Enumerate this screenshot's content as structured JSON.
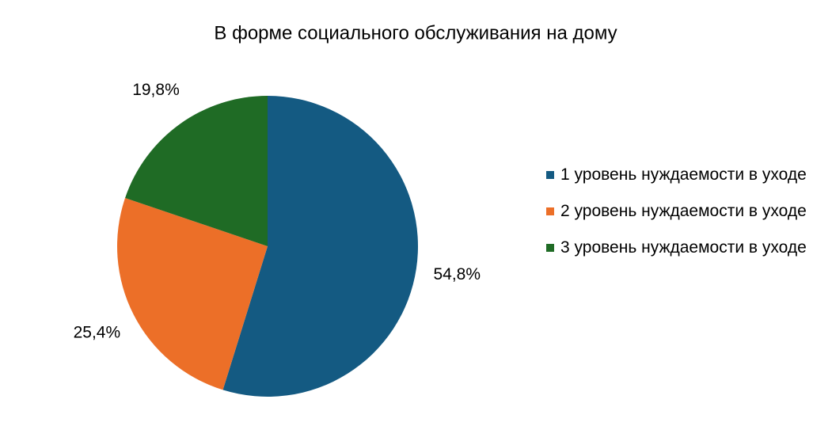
{
  "chart_data": {
    "type": "pie",
    "title": "В форме социального  обслуживания  на дому",
    "categories": [
      "1 уровень нуждаемости в уходе",
      "2 уровень нуждаемости в уходе",
      "3 уровень нуждаемости в уходе"
    ],
    "values": [
      54.8,
      25.4,
      19.8
    ],
    "value_labels": [
      "54,8%",
      "25,4%",
      "19,8%"
    ],
    "colors": [
      "#145a82",
      "#ec6f28",
      "#1f6b25"
    ],
    "legend": "right"
  }
}
